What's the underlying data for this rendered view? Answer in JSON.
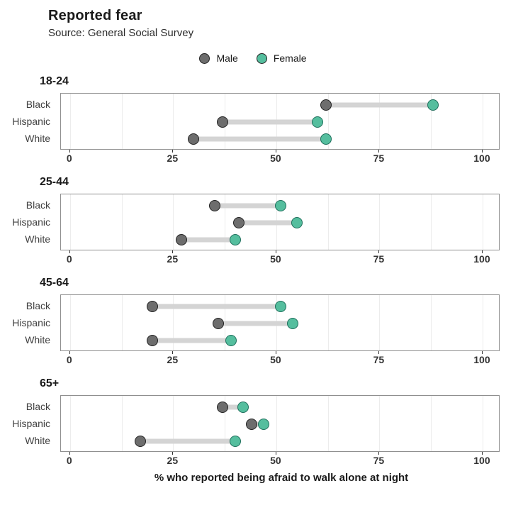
{
  "header": {
    "title": "Reported fear",
    "subtitle": "Source: General Social Survey"
  },
  "legend": {
    "items": [
      {
        "label": "Male",
        "color": "#6d6d6d",
        "stroke": "#222222"
      },
      {
        "label": "Female",
        "color": "#55be9e",
        "stroke": "#1f6f5c"
      }
    ],
    "position": "top-center"
  },
  "xaxis": {
    "label": "% who reported being afraid to walk alone at night"
  },
  "chart_data": {
    "type": "dumbbell",
    "title": "Reported fear",
    "subtitle": "Source: General Social Survey",
    "xlabel": "% who reported being afraid to walk alone at night",
    "x_ticks": [
      0,
      25,
      50,
      75,
      100
    ],
    "xlim": [
      0,
      100
    ],
    "xlim_padded": [
      -2.2,
      104.3
    ],
    "minor_grid_step": 12.5,
    "grid": "vertical-minor",
    "legend_position": "top-center",
    "series_names": [
      "Male",
      "Female"
    ],
    "colors": {
      "male_fill": "#6d6d6d",
      "male_stroke": "#222222",
      "female_fill": "#55be9e",
      "female_stroke": "#1f6f5c",
      "connector": "#d4d4d4",
      "gridline": "#ececec",
      "panel_border": "#8f8f8f"
    },
    "facets": [
      {
        "label": "18-24",
        "categories": [
          "Black",
          "Hispanic",
          "White"
        ],
        "series": [
          {
            "name": "Male",
            "values": [
              62,
              37,
              30
            ]
          },
          {
            "name": "Female",
            "values": [
              88,
              60,
              62
            ]
          }
        ]
      },
      {
        "label": "25-44",
        "categories": [
          "Black",
          "Hispanic",
          "White"
        ],
        "series": [
          {
            "name": "Male",
            "values": [
              35,
              41,
              27
            ]
          },
          {
            "name": "Female",
            "values": [
              51,
              55,
              40
            ]
          }
        ]
      },
      {
        "label": "45-64",
        "categories": [
          "Black",
          "Hispanic",
          "White"
        ],
        "series": [
          {
            "name": "Male",
            "values": [
              20,
              36,
              20
            ]
          },
          {
            "name": "Female",
            "values": [
              51,
              54,
              39
            ]
          }
        ]
      },
      {
        "label": "65+",
        "categories": [
          "Black",
          "Hispanic",
          "White"
        ],
        "series": [
          {
            "name": "Male",
            "values": [
              37,
              44,
              17
            ]
          },
          {
            "name": "Female",
            "values": [
              42,
              47,
              40
            ]
          }
        ]
      }
    ]
  }
}
